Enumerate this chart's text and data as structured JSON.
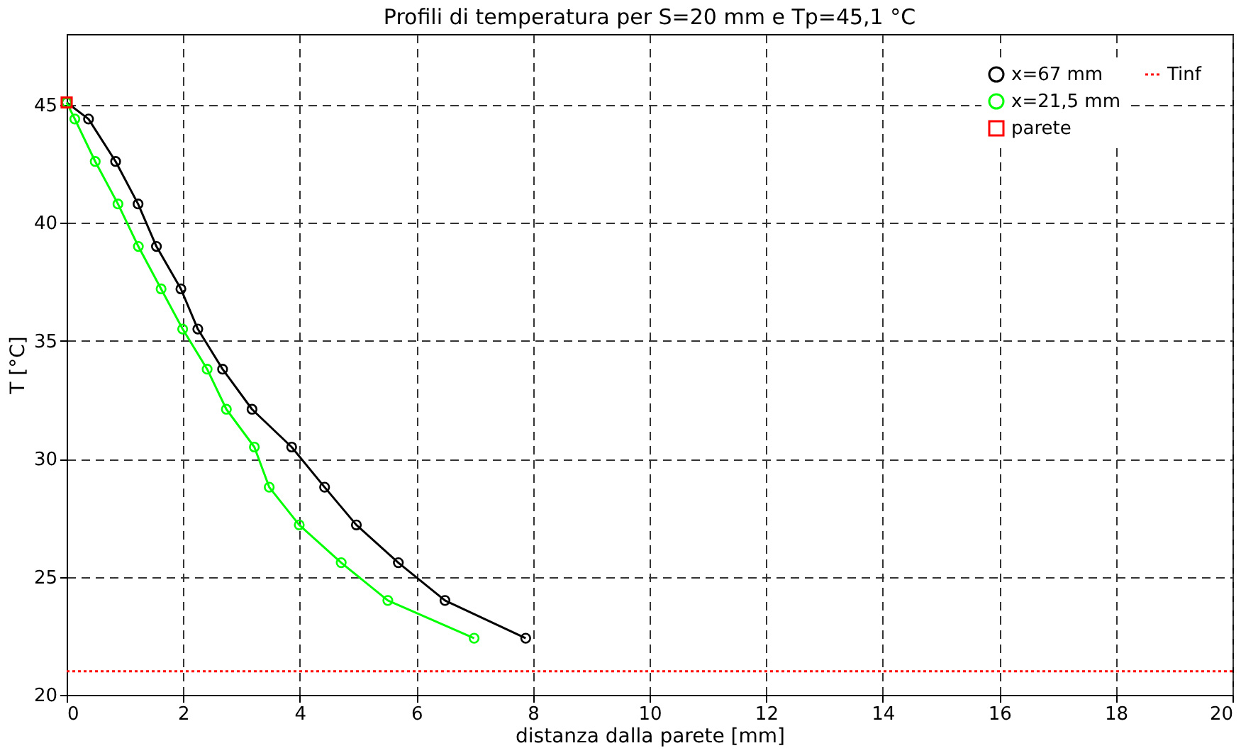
{
  "chart_data": {
    "type": "line",
    "title": "Profili di temperatura per S=20 mm e Tp=45,1 °C",
    "xlabel": "distanza dalla parete [mm]",
    "ylabel": "T [°C]",
    "series": [
      {
        "name": "x=67 mm",
        "color": "#000000",
        "marker": "circle",
        "x": [
          0,
          0.375,
          0.84,
          1.225,
          1.54,
          1.96,
          2.25,
          2.675,
          3.18,
          3.86,
          4.425,
          4.97,
          5.69,
          6.49,
          7.875
        ],
        "values": [
          45.1,
          44.4,
          42.6,
          40.8,
          39.0,
          37.2,
          35.5,
          33.8,
          32.1,
          30.5,
          28.8,
          27.2,
          25.6,
          24.0,
          22.4
        ]
      },
      {
        "name": "x=21,5 mm",
        "color": "#00ff00",
        "marker": "circle",
        "x": [
          0,
          0.14,
          0.49,
          0.88,
          1.23,
          1.62,
          1.99,
          2.41,
          2.74,
          3.22,
          3.475,
          3.99,
          4.71,
          5.51,
          6.99
        ],
        "values": [
          45.1,
          44.4,
          42.6,
          40.8,
          39.0,
          37.2,
          35.5,
          33.8,
          32.1,
          30.5,
          28.8,
          27.2,
          25.6,
          24.0,
          22.4
        ]
      },
      {
        "name": "parete",
        "color": "#ff0000",
        "type": "scatter",
        "marker": "square",
        "x": [
          0
        ],
        "values": [
          45.1
        ]
      }
    ],
    "ref_lines": [
      {
        "axis": "y",
        "value": 21,
        "label": "Tinf",
        "color": "#ff0000",
        "line_style": "dotted"
      }
    ],
    "xlim": [
      0,
      20
    ],
    "xticks": [
      0,
      2,
      4,
      6,
      8,
      10,
      12,
      14,
      16,
      18,
      20
    ],
    "ylim": [
      20,
      48
    ],
    "yticks": [
      20,
      25,
      30,
      35,
      40,
      45
    ],
    "grid": true,
    "legend": "top right",
    "line_style": "solid"
  }
}
